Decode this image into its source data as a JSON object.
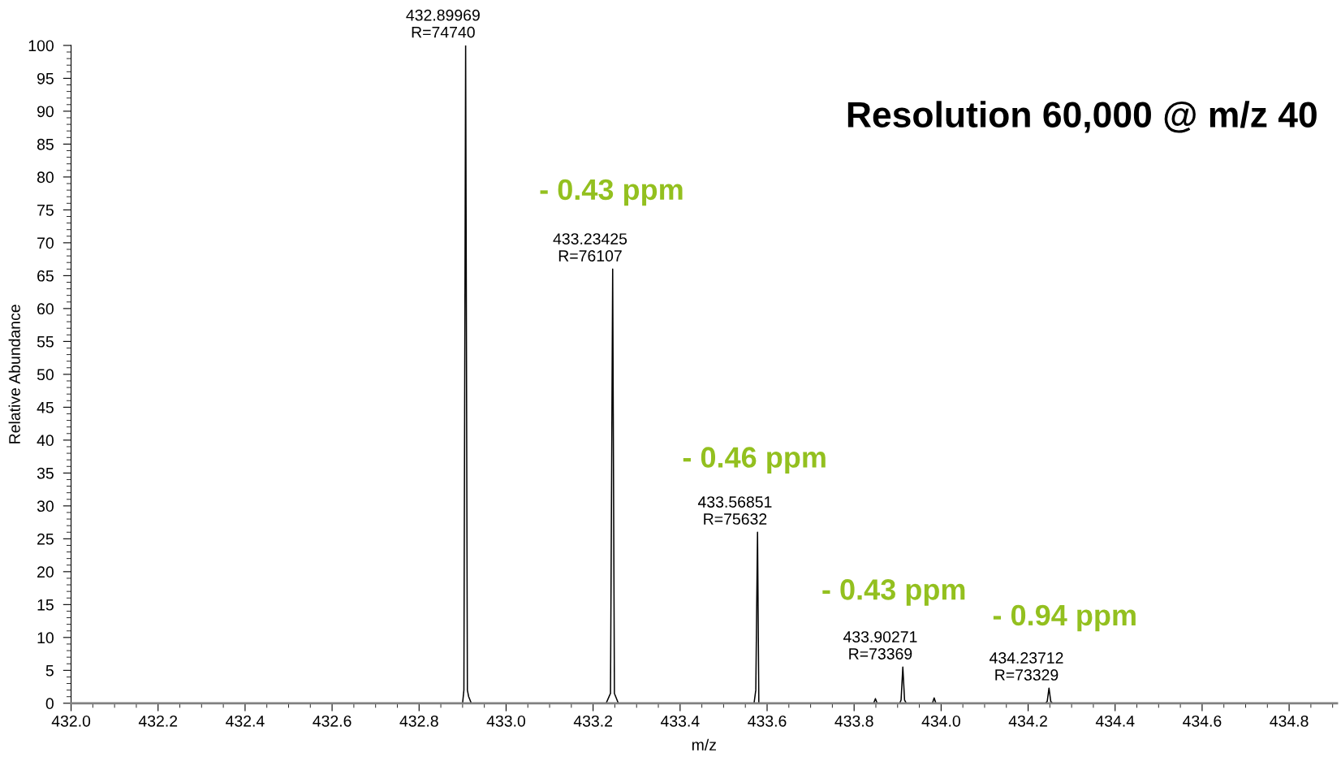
{
  "chart_data": {
    "type": "line",
    "title": "Resolution 60,000 @ m/z 40",
    "xlabel": "m/z",
    "ylabel": "Relative Abundance",
    "xlim": [
      432.0,
      434.91
    ],
    "xticks": [
      {
        "value": 432.0,
        "label": "432.0"
      },
      432.2,
      432.4,
      432.6,
      432.8,
      {
        "value": 433.0,
        "label": "433.0"
      },
      433.2,
      433.4,
      433.6,
      433.8,
      {
        "value": 434.0,
        "label": "434.0"
      },
      434.2,
      434.4,
      434.6,
      434.8
    ],
    "ylim": [
      0,
      100
    ],
    "yticks": [
      0,
      5,
      10,
      15,
      20,
      25,
      30,
      35,
      40,
      45,
      50,
      55,
      60,
      65,
      70,
      75,
      80,
      85,
      90,
      95,
      100
    ],
    "grid": false,
    "legend": false,
    "marker": "none",
    "line_style": "solid",
    "series": [
      {
        "color": "#000000",
        "x": [
          432.0,
          432.9,
          432.903,
          432.907,
          432.911,
          432.914,
          432.92,
          433.23,
          433.24,
          433.245,
          433.249,
          433.252,
          433.258,
          433.57,
          433.574,
          433.578,
          433.581,
          433.59,
          433.845,
          433.849,
          433.853,
          433.905,
          433.908,
          433.912,
          433.916,
          433.92,
          433.98,
          433.984,
          433.988,
          434.24,
          434.244,
          434.248,
          434.252,
          434.256,
          434.91
        ],
        "values": [
          0,
          0,
          2,
          100,
          2,
          1,
          0,
          0,
          1.5,
          66,
          1.5,
          1,
          0,
          0,
          2,
          26,
          0,
          0,
          0,
          0.7,
          0,
          0,
          0.5,
          5.5,
          0.5,
          0,
          0,
          0.8,
          0,
          0,
          0.3,
          2.3,
          0.3,
          0,
          0
        ]
      }
    ],
    "annotations": [
      {
        "text": "432.89969\nR=74740",
        "x": 432.907,
        "y": 100
      },
      {
        "text": "433.23425\nR=76107",
        "x": 433.245,
        "y": 66
      },
      {
        "text": "433.56851\nR=75632",
        "x": 433.578,
        "y": 26
      },
      {
        "text": "433.90271\nR=73369",
        "x": 433.912,
        "y": 5.5
      },
      {
        "text": "434.23712\nR=73329",
        "x": 434.248,
        "y": 2.3
      },
      "- 0.43 ppm",
      "- 0.46 ppm",
      "- 0.43 ppm",
      "- 0.94 ppm"
    ]
  }
}
